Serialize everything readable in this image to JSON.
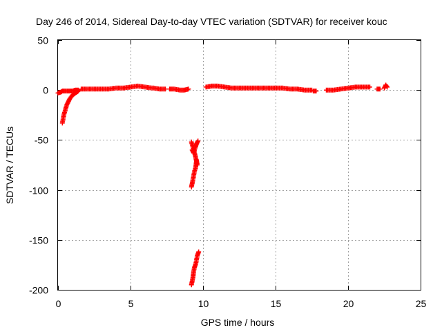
{
  "chart_data": {
    "type": "scatter",
    "title": "Day 246 of 2014, Sidereal Day-to-day VTEC variation (SDTVAR) for receiver kouc",
    "xlabel": "GPS time / hours",
    "ylabel": "SDTVAR / TECUs",
    "xlim": [
      0,
      25
    ],
    "ylim": [
      -200,
      50
    ],
    "xticks": [
      0,
      5,
      10,
      15,
      20,
      25
    ],
    "yticks": [
      -200,
      -150,
      -100,
      -50,
      0,
      50
    ],
    "grid": true,
    "marker": "plus",
    "marker_color": "#ff0000",
    "series": [
      {
        "name": "kouc",
        "segments": [
          {
            "x": [
              0.0,
              0.2,
              0.3,
              0.5,
              0.8,
              1.0,
              1.2,
              1.4
            ],
            "y": [
              -3,
              -2,
              -1,
              -1,
              -1,
              -1,
              0,
              0
            ]
          },
          {
            "x": [
              0.3,
              0.35,
              0.4,
              0.5,
              0.6,
              0.7,
              0.8,
              0.9,
              1.0,
              1.1,
              1.2,
              1.3,
              1.4
            ],
            "y": [
              -33,
              -29,
              -25,
              -20,
              -15,
              -12,
              -9,
              -7,
              -5,
              -4,
              -3,
              -2,
              -1
            ]
          },
          {
            "x": [
              1.6,
              2.0,
              2.5,
              3.0,
              3.5,
              4.0,
              4.5,
              5.0,
              5.5,
              6.0,
              6.5
            ],
            "y": [
              1,
              1,
              1,
              1,
              1,
              2,
              2,
              3,
              4,
              3,
              2
            ]
          },
          {
            "x": [
              6.6,
              7.0,
              7.4
            ],
            "y": [
              2,
              1,
              1
            ]
          },
          {
            "x": [
              7.7,
              8.0,
              8.4,
              8.7,
              9.0
            ],
            "y": [
              1,
              1,
              0,
              0,
              1
            ]
          },
          {
            "x": [
              9.2,
              9.3,
              9.4,
              9.5,
              9.55,
              9.6,
              9.5,
              9.4,
              9.3,
              9.2
            ],
            "y": [
              -97,
              -90,
              -82,
              -77,
              -70,
              -75,
              -68,
              -62,
              -57,
              -52
            ]
          },
          {
            "x": [
              9.25,
              9.35,
              9.45,
              9.55,
              9.65
            ],
            "y": [
              -60,
              -63,
              -58,
              -54,
              -51
            ]
          },
          {
            "x": [
              9.2,
              9.3,
              9.35,
              9.4,
              9.5,
              9.55,
              9.6,
              9.7
            ],
            "y": [
              -195,
              -188,
              -182,
              -178,
              -174,
              -170,
              -166,
              -162
            ]
          },
          {
            "x": [
              10.2,
              10.6,
              11.0,
              11.5,
              12.0,
              12.5,
              13.0,
              13.5,
              14.0,
              14.5,
              15.0,
              15.5,
              16.0,
              16.5,
              17.0,
              17.5
            ],
            "y": [
              3,
              4,
              4,
              3,
              2,
              2,
              2,
              2,
              2,
              2,
              2,
              2,
              1,
              1,
              0,
              0
            ]
          },
          {
            "x": [
              17.6,
              17.8
            ],
            "y": [
              -1,
              -1
            ]
          },
          {
            "x": [
              18.5,
              19.0,
              19.5,
              20.0,
              20.5,
              21.0,
              21.5
            ],
            "y": [
              0,
              0,
              1,
              2,
              3,
              3,
              3
            ]
          },
          {
            "x": [
              22.0,
              22.2
            ],
            "y": [
              1,
              1
            ]
          },
          {
            "x": [
              22.5,
              22.6,
              22.7
            ],
            "y": [
              2,
              5,
              3
            ]
          }
        ]
      }
    ]
  }
}
